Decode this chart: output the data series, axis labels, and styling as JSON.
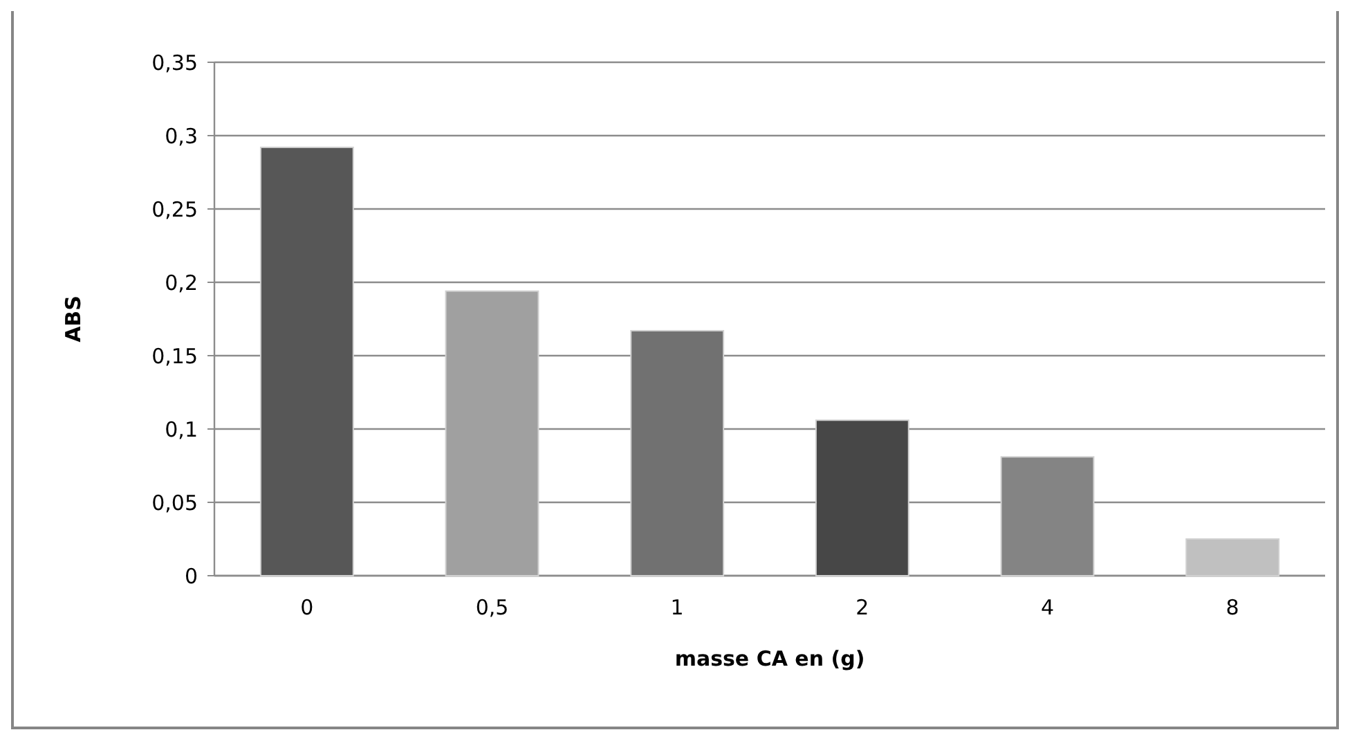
{
  "chart_data": {
    "type": "bar",
    "xlabel": "masse CA en (g)",
    "ylabel": "ABS",
    "categories": [
      "0",
      "0,5",
      "1",
      "2",
      "4",
      "8"
    ],
    "values": [
      0.292,
      0.194,
      0.167,
      0.106,
      0.081,
      0.025
    ],
    "colors": [
      "#575757",
      "#a0a0a0",
      "#717171",
      "#474747",
      "#848484",
      "#c0c0c0"
    ],
    "ylim": [
      0,
      0.35
    ],
    "yticks": [
      {
        "value": 0,
        "label": "0"
      },
      {
        "value": 0.05,
        "label": "0,05"
      },
      {
        "value": 0.1,
        "label": "0,1"
      },
      {
        "value": 0.15,
        "label": "0,15"
      },
      {
        "value": 0.2,
        "label": "0,2"
      },
      {
        "value": 0.25,
        "label": "0,25"
      },
      {
        "value": 0.3,
        "label": "0,3"
      },
      {
        "value": 0.35,
        "label": "0,35"
      }
    ],
    "grid": "y"
  }
}
